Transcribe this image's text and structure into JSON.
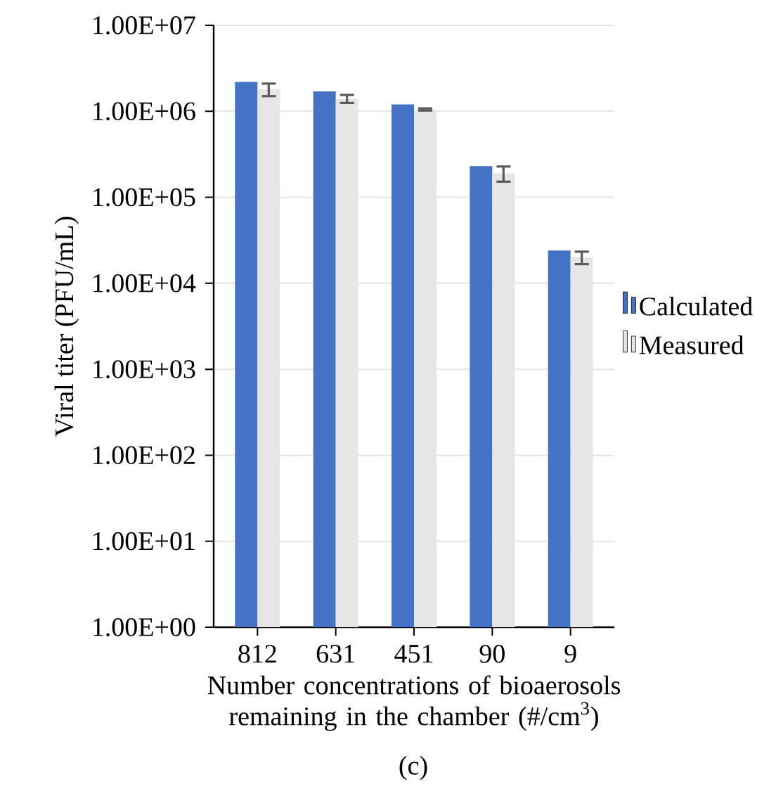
{
  "chart_data": {
    "type": "bar",
    "xlabel": "Number concentrations of bioaerosols remaining in the chamber (#/cm$^{3}$)",
    "ylabel": "Viral titer (PFU/mL)",
    "annotations": [
      "(c)"
    ],
    "categories": [
      "812",
      "631",
      "451",
      "90",
      "9"
    ],
    "series": [
      {
        "name": "Calculated",
        "color": "#4472c4",
        "values": [
          2200000,
          1700000,
          1200000,
          230000,
          24000
        ]
      },
      {
        "name": "Measured",
        "color": "#e7e6e6",
        "values": [
          1800000,
          1400000,
          1050000,
          190000,
          20000
        ],
        "errors": [
          300000,
          150000,
          30000,
          38000,
          3300
        ]
      }
    ],
    "log": "y",
    "ylim": [
      1,
      10000000
    ],
    "yticks": [
      {
        "value": 1,
        "label": "1.00E+00"
      },
      {
        "value": 10,
        "label": "1.00E+01"
      },
      {
        "value": 100,
        "label": "1.00E+02"
      },
      {
        "value": 1000,
        "label": "1.00E+03"
      },
      {
        "value": 10000,
        "label": "1.00E+04"
      },
      {
        "value": 100000,
        "label": "1.00E+05"
      },
      {
        "value": 1000000,
        "label": "1.00E+06"
      },
      {
        "value": 10000000,
        "label": "1.00E+07"
      }
    ],
    "grid": "y",
    "legend": "right"
  }
}
